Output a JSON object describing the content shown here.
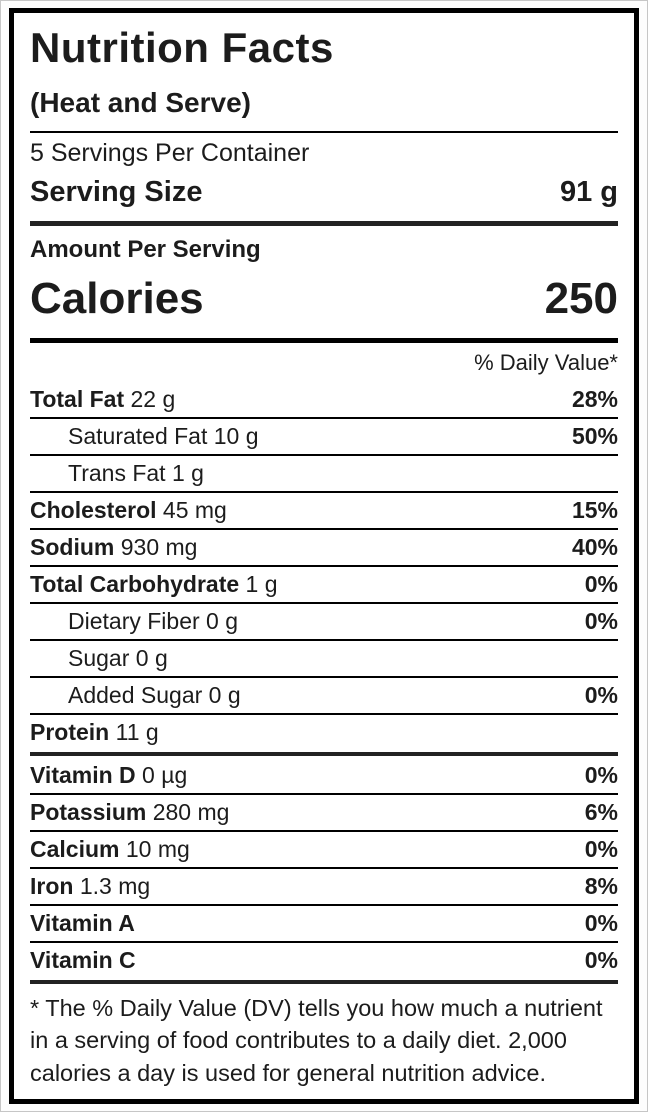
{
  "label": {
    "title": "Nutrition Facts",
    "subtitle": "(Heat and Serve)",
    "servings_per_container": "5 Servings Per Container",
    "serving_size_label": "Serving Size",
    "serving_size_value": "91 g",
    "amount_per_serving": "Amount Per Serving",
    "calories_label": "Calories",
    "calories_value": "250",
    "daily_value_header": "% Daily Value*",
    "nutrients": [
      {
        "name": "Total Fat",
        "amount": "22 g",
        "dv": "28%",
        "indent": false,
        "bold": true
      },
      {
        "name": "Saturated Fat",
        "amount": "10 g",
        "dv": "50%",
        "indent": true,
        "bold": false
      },
      {
        "name": "Trans Fat",
        "amount": "1 g",
        "dv": "",
        "indent": true,
        "bold": false
      },
      {
        "name": "Cholesterol",
        "amount": "45 mg",
        "dv": "15%",
        "indent": false,
        "bold": true
      },
      {
        "name": "Sodium",
        "amount": "930 mg",
        "dv": "40%",
        "indent": false,
        "bold": true
      },
      {
        "name": "Total Carbohydrate",
        "amount": "1 g",
        "dv": "0%",
        "indent": false,
        "bold": true
      },
      {
        "name": "Dietary Fiber",
        "amount": "0 g",
        "dv": "0%",
        "indent": true,
        "bold": false
      },
      {
        "name": "Sugar",
        "amount": "0 g",
        "dv": "",
        "indent": true,
        "bold": false
      },
      {
        "name": "Added Sugar",
        "amount": "0 g",
        "dv": "0%",
        "indent": true,
        "bold": false
      },
      {
        "name": "Protein",
        "amount": "11 g",
        "dv": "",
        "indent": false,
        "bold": true
      }
    ],
    "vitamins": [
      {
        "name": "Vitamin D",
        "amount": "0 µg",
        "dv": "0%",
        "indent": false,
        "bold": true
      },
      {
        "name": "Potassium",
        "amount": "280 mg",
        "dv": "6%",
        "indent": false,
        "bold": true
      },
      {
        "name": "Calcium",
        "amount": "10 mg",
        "dv": "0%",
        "indent": false,
        "bold": true
      },
      {
        "name": "Iron",
        "amount": "1.3 mg",
        "dv": "8%",
        "indent": false,
        "bold": true
      },
      {
        "name": "Vitamin A",
        "amount": "",
        "dv": "0%",
        "indent": false,
        "bold": true
      },
      {
        "name": "Vitamin C",
        "amount": "",
        "dv": "0%",
        "indent": false,
        "bold": true
      }
    ],
    "footnote": "* The % Daily Value (DV) tells you how much a nutrient in a serving of food contributes to a daily diet. 2,000 calories a day is used for general nutrition advice."
  }
}
